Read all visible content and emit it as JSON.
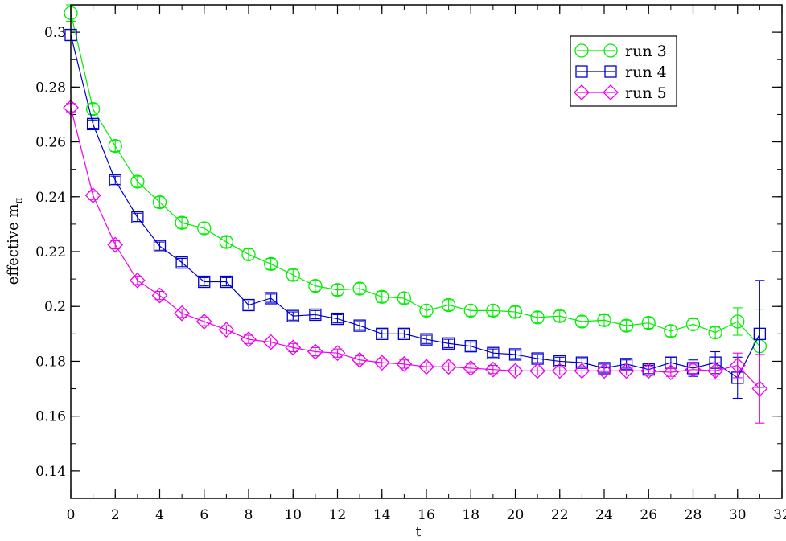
{
  "chart_data": {
    "type": "scatter",
    "title": "",
    "xlabel": "t",
    "ylabel": "effective m",
    "ylabel_subscript": "π",
    "xlim": [
      0,
      32
    ],
    "ylim": [
      0.13,
      0.31
    ],
    "x_ticks": [
      0,
      2,
      4,
      6,
      8,
      10,
      12,
      14,
      16,
      18,
      20,
      22,
      24,
      26,
      28,
      30,
      32
    ],
    "x_tick_labels": [
      "0",
      "2",
      "4",
      "6",
      "8",
      "10",
      "12",
      "14",
      "16",
      "18",
      "20",
      "22",
      "24",
      "26",
      "28",
      "30",
      "32"
    ],
    "y_ticks": [
      0.14,
      0.16,
      0.18,
      0.2,
      0.22,
      0.24,
      0.26,
      0.28,
      0.3
    ],
    "y_tick_labels": [
      "0.14",
      "0.16",
      "0.18",
      "0.2",
      "0.22",
      "0.24",
      "0.26",
      "0.28",
      "0.3"
    ],
    "x_minor_step": 1,
    "y_minor_step": 0.01,
    "grid": false,
    "legend_position": "top-right",
    "series": [
      {
        "name": "run 3",
        "marker": "circle",
        "color": "#00ee00",
        "x": [
          0,
          1,
          2,
          3,
          4,
          5,
          6,
          7,
          8,
          9,
          10,
          11,
          12,
          13,
          14,
          15,
          16,
          17,
          18,
          19,
          20,
          21,
          22,
          23,
          24,
          25,
          26,
          27,
          28,
          29,
          30,
          31
        ],
        "y": [
          0.307,
          0.272,
          0.2585,
          0.2455,
          0.238,
          0.2305,
          0.2285,
          0.2235,
          0.219,
          0.2155,
          0.2115,
          0.2075,
          0.206,
          0.2065,
          0.2035,
          0.203,
          0.1985,
          0.2005,
          0.1985,
          0.1985,
          0.198,
          0.196,
          0.1965,
          0.1945,
          0.195,
          0.193,
          0.194,
          0.191,
          0.1935,
          0.1905,
          0.1945,
          0.1855
        ],
        "err": [
          0.003,
          0.002,
          0.002,
          0.002,
          0.002,
          0.002,
          0.002,
          0.002,
          0.002,
          0.002,
          0.002,
          0.002,
          0.002,
          0.002,
          0.002,
          0.002,
          0.002,
          0.002,
          0.002,
          0.002,
          0.002,
          0.002,
          0.002,
          0.002,
          0.002,
          0.002,
          0.002,
          0.002,
          0.002,
          0.002,
          0.005,
          0.0135
        ]
      },
      {
        "name": "run 4",
        "marker": "square",
        "color": "#0000cc",
        "x": [
          0,
          1,
          2,
          3,
          4,
          5,
          6,
          7,
          8,
          9,
          10,
          11,
          12,
          13,
          14,
          15,
          16,
          17,
          18,
          19,
          20,
          21,
          22,
          23,
          24,
          25,
          26,
          27,
          28,
          29,
          30,
          31
        ],
        "y": [
          0.299,
          0.2665,
          0.246,
          0.2325,
          0.222,
          0.216,
          0.209,
          0.209,
          0.2005,
          0.203,
          0.1965,
          0.197,
          0.1955,
          0.193,
          0.19,
          0.19,
          0.188,
          0.1865,
          0.1855,
          0.183,
          0.1825,
          0.181,
          0.18,
          0.1795,
          0.1775,
          0.179,
          0.177,
          0.1795,
          0.1775,
          0.1795,
          0.174,
          0.19
        ],
        "err": [
          0.002,
          0.0015,
          0.0015,
          0.0015,
          0.0015,
          0.0015,
          0.0015,
          0.0015,
          0.0015,
          0.0015,
          0.0015,
          0.0015,
          0.0015,
          0.0015,
          0.0015,
          0.0015,
          0.0015,
          0.0015,
          0.0015,
          0.0015,
          0.0015,
          0.0015,
          0.0015,
          0.0015,
          0.0015,
          0.0015,
          0.0015,
          0.002,
          0.003,
          0.004,
          0.0075,
          0.0195
        ]
      },
      {
        "name": "run 5",
        "marker": "diamond",
        "color": "#ee00ee",
        "x": [
          0,
          1,
          2,
          3,
          4,
          5,
          6,
          7,
          8,
          9,
          10,
          11,
          12,
          13,
          14,
          15,
          16,
          17,
          18,
          19,
          20,
          21,
          22,
          23,
          24,
          25,
          26,
          27,
          28,
          29,
          30,
          31
        ],
        "y": [
          0.2725,
          0.2405,
          0.2225,
          0.2095,
          0.204,
          0.1975,
          0.1945,
          0.1915,
          0.188,
          0.187,
          0.185,
          0.1835,
          0.183,
          0.1805,
          0.1795,
          0.179,
          0.178,
          0.178,
          0.1775,
          0.177,
          0.1765,
          0.1765,
          0.1765,
          0.1765,
          0.1765,
          0.1765,
          0.1765,
          0.176,
          0.177,
          0.1765,
          0.1785,
          0.17
        ],
        "err": [
          0.0015,
          0.0015,
          0.0015,
          0.0015,
          0.0015,
          0.0015,
          0.0015,
          0.0015,
          0.0015,
          0.0015,
          0.0015,
          0.0015,
          0.0015,
          0.0015,
          0.0015,
          0.0015,
          0.0015,
          0.0015,
          0.0015,
          0.0015,
          0.0015,
          0.0015,
          0.0015,
          0.0015,
          0.0015,
          0.0015,
          0.0015,
          0.0015,
          0.002,
          0.003,
          0.0045,
          0.0125
        ]
      }
    ]
  }
}
